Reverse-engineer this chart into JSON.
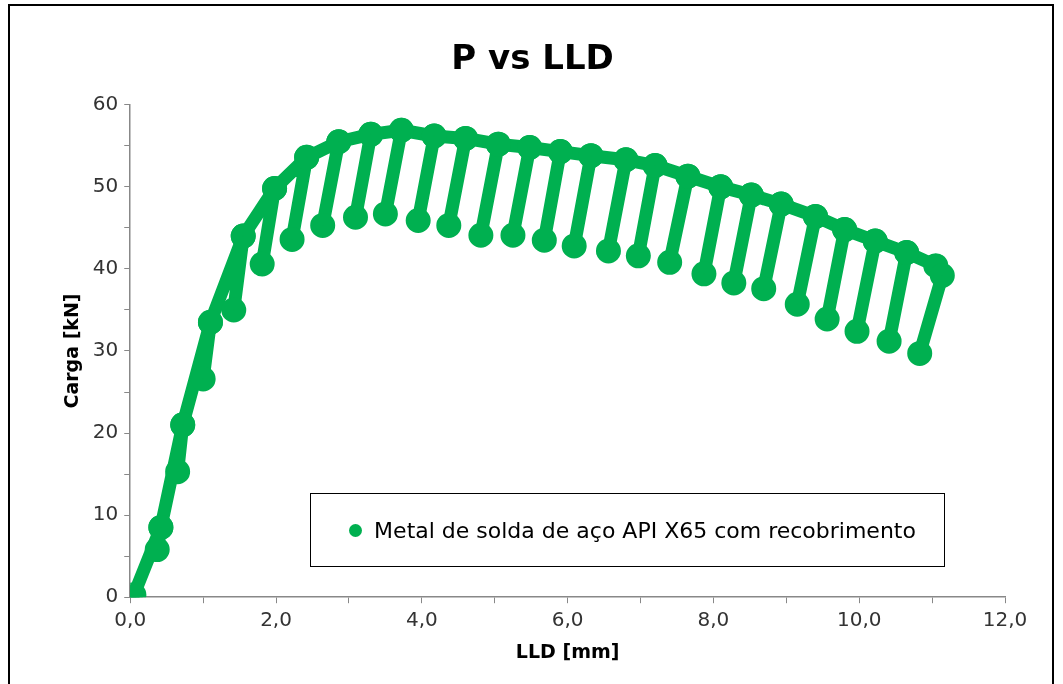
{
  "chart_data": {
    "type": "line",
    "title": "P vs LLD",
    "xlabel": "LLD [mm]",
    "ylabel": "Carga [kN]",
    "xlim": [
      0,
      12
    ],
    "ylim": [
      0,
      60
    ],
    "xticks": [
      {
        "value": 0,
        "label": "0,0"
      },
      {
        "value": 1,
        "label": null
      },
      {
        "value": 2,
        "label": "2,0"
      },
      {
        "value": 3,
        "label": null
      },
      {
        "value": 4,
        "label": "4,0"
      },
      {
        "value": 5,
        "label": null
      },
      {
        "value": 6,
        "label": "6,0"
      },
      {
        "value": 7,
        "label": null
      },
      {
        "value": 8,
        "label": "8,0"
      },
      {
        "value": 9,
        "label": null
      },
      {
        "value": 10,
        "label": "10,0"
      },
      {
        "value": 11,
        "label": null
      },
      {
        "value": 12,
        "label": "12,0"
      }
    ],
    "yticks": [
      0,
      {
        "value": 5,
        "label": null
      },
      10,
      {
        "value": 15,
        "label": null
      },
      20,
      {
        "value": 25,
        "label": null
      },
      30,
      {
        "value": 35,
        "label": null
      },
      40,
      {
        "value": 45,
        "label": null
      },
      50,
      {
        "value": 55,
        "label": null
      },
      60
    ],
    "grid": false,
    "legend": "bottom",
    "marker": "circle",
    "series": [
      {
        "name": "Metal de solda de aço API X65 com recobrimento",
        "color": "#00b050",
        "x": [
          0,
          0.05,
          0.42,
          0.37,
          0.42,
          0.72,
          0.65,
          0.72,
          1.1,
          1.0,
          1.1,
          1.55,
          1.42,
          1.55,
          1.98,
          1.81,
          1.98,
          2.42,
          2.22,
          2.42,
          2.86,
          2.64,
          2.86,
          3.3,
          3.09,
          3.3,
          3.72,
          3.5,
          3.72,
          4.17,
          3.95,
          4.17,
          4.6,
          4.37,
          4.6,
          5.05,
          4.81,
          5.05,
          5.48,
          5.25,
          5.48,
          5.9,
          5.68,
          5.9,
          6.32,
          6.09,
          6.32,
          6.8,
          6.56,
          6.8,
          7.2,
          6.97,
          7.2,
          7.65,
          7.4,
          7.65,
          8.1,
          7.87,
          8.1,
          8.52,
          8.28,
          8.52,
          8.93,
          8.69,
          8.93,
          9.4,
          9.15,
          9.4,
          9.8,
          9.56,
          9.8,
          10.22,
          9.97,
          10.22,
          10.65,
          10.41,
          10.65,
          11.05,
          11.14,
          10.83
        ],
        "values": [
          0,
          0.3,
          8.5,
          5.8,
          8.5,
          21,
          15.3,
          21,
          33.5,
          26.6,
          33.5,
          44,
          35,
          44,
          49.8,
          40.6,
          49.8,
          53.6,
          43.6,
          53.6,
          55.5,
          45.3,
          55.5,
          56.4,
          46.3,
          56.4,
          56.9,
          46.7,
          56.9,
          56.2,
          45.9,
          56.2,
          55.9,
          45.3,
          55.9,
          55.2,
          44.1,
          55.2,
          54.8,
          44.1,
          54.8,
          54.3,
          43.5,
          54.3,
          53.8,
          42.8,
          53.8,
          53.3,
          42.2,
          53.3,
          52.6,
          41.6,
          52.6,
          51.3,
          40.8,
          51.3,
          50,
          39.4,
          50,
          49,
          38.3,
          49,
          47.9,
          37.6,
          47.9,
          46.4,
          35.7,
          46.4,
          44.8,
          33.9,
          44.8,
          43.4,
          32.4,
          43.4,
          42,
          31.2,
          42,
          40.4,
          39.2,
          29.7
        ]
      }
    ]
  }
}
